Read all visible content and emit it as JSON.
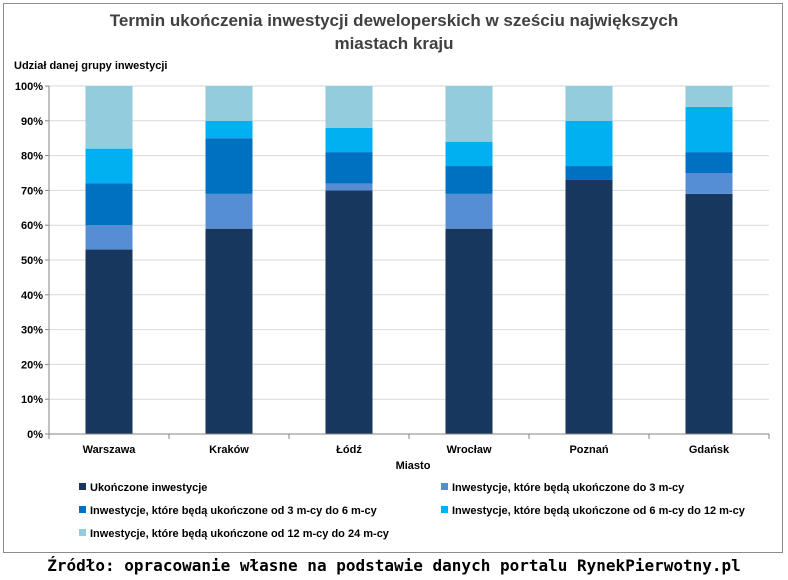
{
  "chart_data": {
    "type": "bar",
    "stacked": true,
    "title_lines": [
      "Termin ukończenia inwestycji deweloperskich w sześciu największych",
      "miastach kraju"
    ],
    "ylabel": "Udział danej grupy inwestycji",
    "xlabel": "Miasto",
    "ylim": [
      0,
      100
    ],
    "yticks": [
      "0%",
      "10%",
      "20%",
      "30%",
      "40%",
      "50%",
      "60%",
      "70%",
      "80%",
      "90%",
      "100%"
    ],
    "grid": true,
    "legend_position": "bottom",
    "categories": [
      "Warszawa",
      "Kraków",
      "Łódź",
      "Wrocław",
      "Poznań",
      "Gdańsk"
    ],
    "series": [
      {
        "name": "Ukończone inwestycje",
        "color": "#17375e",
        "values": [
          53,
          59,
          70,
          59,
          73,
          69
        ]
      },
      {
        "name": "Inwestycje, które będą ukończone do 3 m-cy",
        "color": "#558ed5",
        "values": [
          7,
          10,
          2,
          10,
          0,
          6
        ]
      },
      {
        "name": "Inwestycje, które będą ukończone od 3 m-cy do 6 m-cy",
        "color": "#0070c0",
        "values": [
          12,
          16,
          9,
          8,
          4,
          6
        ]
      },
      {
        "name": "Inwestycje, które będą ukończone od 6 m-cy do 12 m-cy",
        "color": "#00b0f0",
        "values": [
          10,
          5,
          7,
          7,
          13,
          13
        ]
      },
      {
        "name": "Inwestycje, które będą ukończone od 12 m-cy do 24 m-cy",
        "color": "#93cddd",
        "values": [
          18,
          10,
          12,
          16,
          10,
          6
        ]
      }
    ]
  },
  "source": "Źródło: opracowanie własne na podstawie danych portalu RynekPierwotny.pl"
}
